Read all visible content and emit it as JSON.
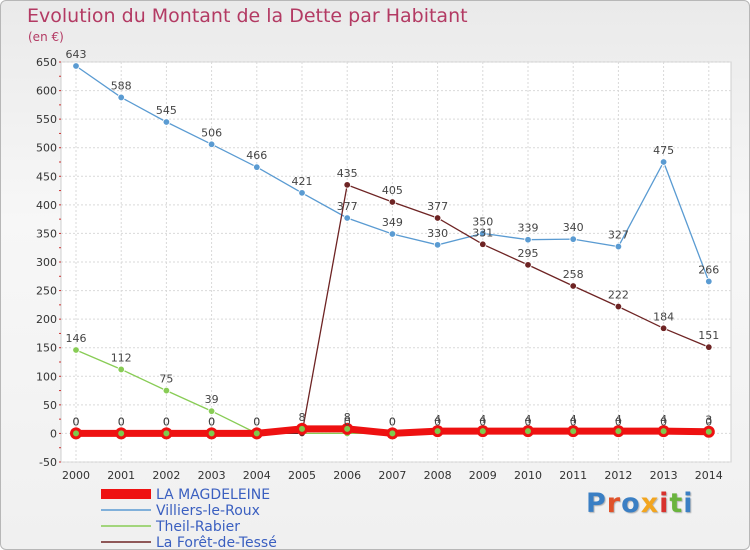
{
  "header": {
    "title": "Evolution du Montant de la Dette par Habitant",
    "unit": "(en €)"
  },
  "logo": {
    "text": "Proxiti",
    "colors": [
      "#3a7fc4",
      "#e0522a",
      "#3a7fc4",
      "#f2a51f",
      "#d8322d",
      "#6ab43e",
      "#3a7fc4"
    ]
  },
  "chart_data": {
    "type": "line",
    "title": "Evolution du Montant de la Dette par Habitant",
    "ylabel": "(en €)",
    "xlabel": "",
    "ylim": [
      -50,
      650
    ],
    "yticks": [
      -50,
      0,
      50,
      100,
      150,
      200,
      250,
      300,
      350,
      400,
      450,
      500,
      550,
      600,
      650
    ],
    "x": [
      "2000",
      "2001",
      "2002",
      "2003",
      "2004",
      "2005",
      "2006",
      "2007",
      "2008",
      "2009",
      "2010",
      "2011",
      "2012",
      "2013",
      "2014"
    ],
    "grid": true,
    "legend_position": "bottom-left",
    "series": [
      {
        "name": "Villiers-le-Roux",
        "color": "#5a9bd2",
        "values": [
          643,
          588,
          545,
          506,
          466,
          421,
          377,
          349,
          330,
          350,
          339,
          340,
          327,
          475,
          266
        ],
        "labels": [
          "643",
          "588",
          "545",
          "506",
          "466",
          "421",
          "377",
          "349",
          "330",
          "350",
          "339",
          "340",
          "327",
          "475",
          "266"
        ]
      },
      {
        "name": "Theil-Rabier",
        "color": "#88cc55",
        "values": [
          146,
          112,
          75,
          39,
          0,
          null,
          0,
          0,
          0,
          0,
          0,
          0,
          0,
          0,
          0
        ],
        "labels": [
          "146",
          "112",
          "75",
          "39",
          "",
          "",
          "",
          "",
          "",
          "",
          "",
          "",
          "",
          "",
          ""
        ]
      },
      {
        "name": "La Forêt-de-Tessé",
        "color": "#6e2424",
        "values": [
          0,
          0,
          0,
          0,
          0,
          0,
          435,
          405,
          377,
          331,
          295,
          258,
          222,
          184,
          151
        ],
        "labels": [
          "",
          "",
          "",
          "",
          "",
          "",
          "435",
          "405",
          "377",
          "331",
          "295",
          "258",
          "222",
          "184",
          "151"
        ]
      },
      {
        "name": "LA MAGDELEINE",
        "color": "#ee1111",
        "thick": true,
        "values": [
          0,
          0,
          0,
          0,
          0,
          8,
          8,
          0,
          4,
          4,
          4,
          4,
          4,
          4,
          3
        ],
        "labels": [
          "0",
          "0",
          "0",
          "0",
          "0",
          "8",
          "8",
          "0",
          "4",
          "4",
          "4",
          "4",
          "4",
          "4",
          "3"
        ]
      }
    ],
    "extra_point_labels": [
      {
        "x_index": 0,
        "text": "0"
      },
      {
        "x_index": 1,
        "text": "0"
      },
      {
        "x_index": 2,
        "text": "0"
      },
      {
        "x_index": 3,
        "text": "0"
      },
      {
        "x_index": 4,
        "text": "0"
      },
      {
        "x_index": 6,
        "text": "0"
      },
      {
        "x_index": 7,
        "text": "0"
      },
      {
        "x_index": 8,
        "text": "0"
      },
      {
        "x_index": 9,
        "text": "0"
      },
      {
        "x_index": 10,
        "text": "0"
      },
      {
        "x_index": 11,
        "text": "0"
      },
      {
        "x_index": 12,
        "text": "0"
      },
      {
        "x_index": 13,
        "text": "0"
      },
      {
        "x_index": 14,
        "text": "0"
      }
    ],
    "legend": [
      "LA MAGDELEINE",
      "Villiers-le-Roux",
      "Theil-Rabier",
      "La Forêt-de-Tessé"
    ]
  }
}
